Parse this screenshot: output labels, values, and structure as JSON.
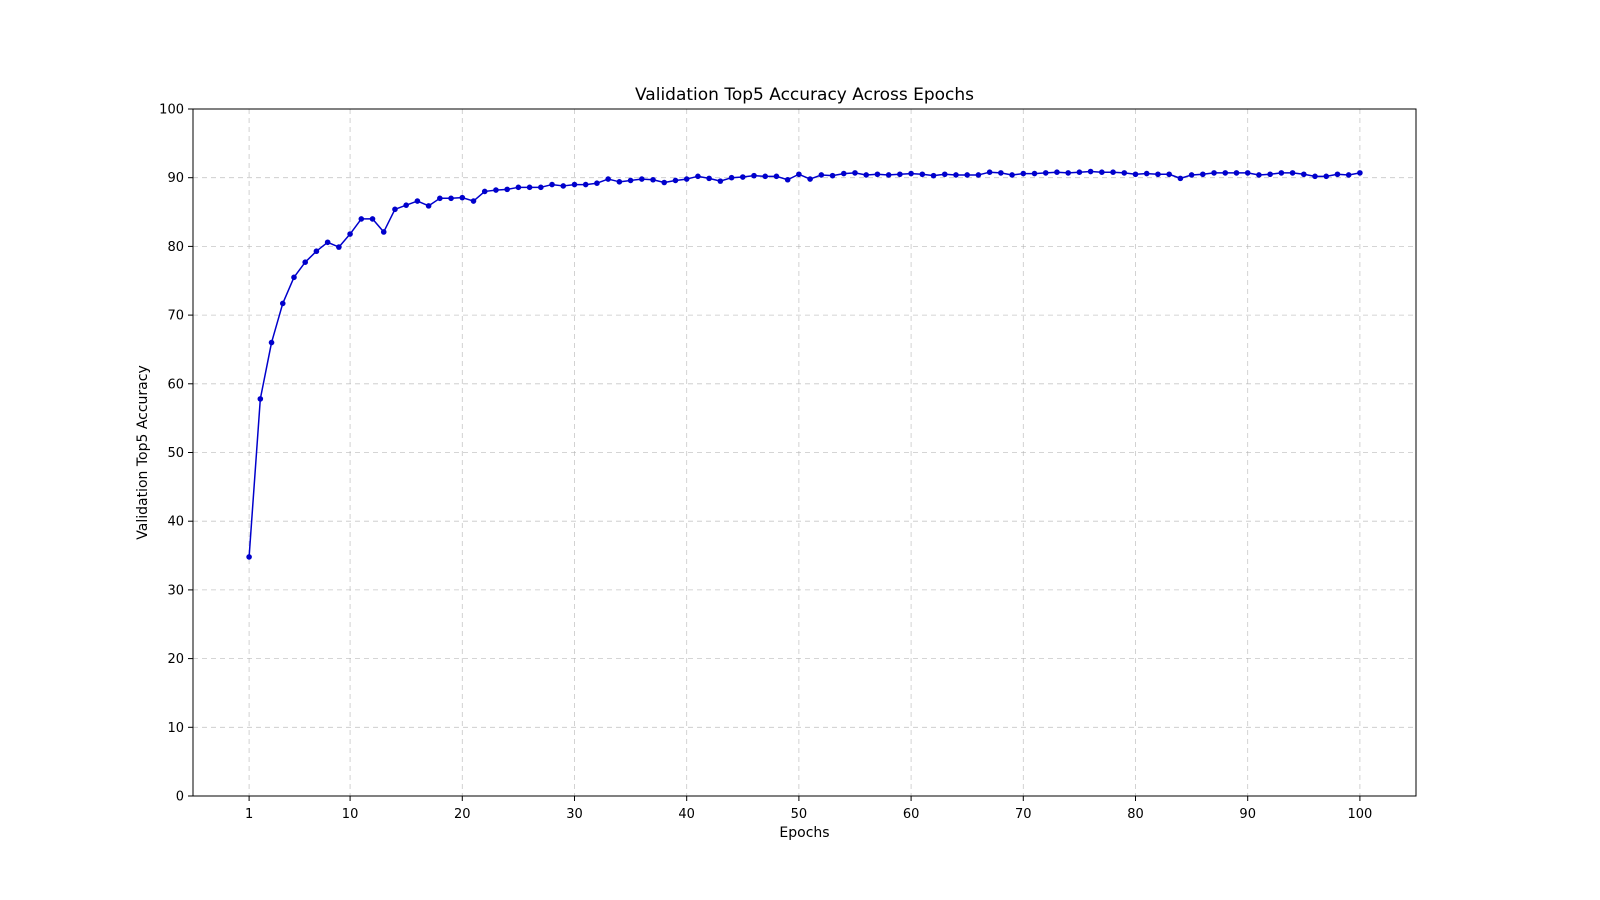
{
  "chart_data": {
    "type": "line",
    "title": "Validation Top5 Accuracy Across Epochs",
    "xlabel": "Epochs",
    "ylabel": "Validation Top5 Accuracy",
    "xlim": [
      -4,
      105
    ],
    "ylim": [
      0,
      100
    ],
    "xticks": [
      1,
      10,
      20,
      30,
      40,
      50,
      60,
      70,
      80,
      90,
      100
    ],
    "yticks": [
      0,
      10,
      20,
      30,
      40,
      50,
      60,
      70,
      80,
      90,
      100
    ],
    "grid": true,
    "line_color": "#0000cc",
    "series": [
      {
        "x": [
          1,
          2,
          3,
          4,
          5,
          6,
          7,
          8,
          9,
          10,
          11,
          12,
          13,
          14,
          15,
          16,
          17,
          18,
          19,
          20,
          21,
          22,
          23,
          24,
          25,
          26,
          27,
          28,
          29,
          30,
          31,
          32,
          33,
          34,
          35,
          36,
          37,
          38,
          39,
          40,
          41,
          42,
          43,
          44,
          45,
          46,
          47,
          48,
          49,
          50,
          51,
          52,
          53,
          54,
          55,
          56,
          57,
          58,
          59,
          60,
          61,
          62,
          63,
          64,
          65,
          66,
          67,
          68,
          69,
          70,
          71,
          72,
          73,
          74,
          75,
          76,
          77,
          78,
          79,
          80,
          81,
          82,
          83,
          84,
          85,
          86,
          87,
          88,
          89,
          90,
          91,
          92,
          93,
          94,
          95,
          96,
          97,
          98,
          99,
          100
        ],
        "values": [
          34.8,
          57.8,
          66.0,
          71.7,
          75.5,
          77.7,
          79.3,
          80.6,
          79.9,
          81.8,
          84.0,
          84.0,
          82.1,
          85.4,
          86.0,
          86.6,
          85.9,
          87.0,
          87.0,
          87.1,
          86.6,
          88.0,
          88.2,
          88.3,
          88.6,
          88.6,
          88.6,
          89.0,
          88.8,
          89.0,
          89.0,
          89.2,
          89.8,
          89.4,
          89.6,
          89.8,
          89.7,
          89.3,
          89.6,
          89.8,
          90.2,
          89.9,
          89.5,
          90.0,
          90.1,
          90.3,
          90.2,
          90.2,
          89.7,
          90.5,
          89.8,
          90.4,
          90.3,
          90.6,
          90.7,
          90.4,
          90.5,
          90.4,
          90.5,
          90.6,
          90.5,
          90.3,
          90.5,
          90.4,
          90.4,
          90.4,
          90.8,
          90.7,
          90.4,
          90.6,
          90.6,
          90.7,
          90.8,
          90.7,
          90.8,
          90.9,
          90.8,
          90.8,
          90.7,
          90.5,
          90.6,
          90.5,
          90.5,
          89.9,
          90.4,
          90.5,
          90.7,
          90.7,
          90.7,
          90.7,
          90.4,
          90.5,
          90.7,
          90.7,
          90.5,
          90.2,
          90.2,
          90.5,
          90.4,
          90.7
        ]
      }
    ]
  }
}
